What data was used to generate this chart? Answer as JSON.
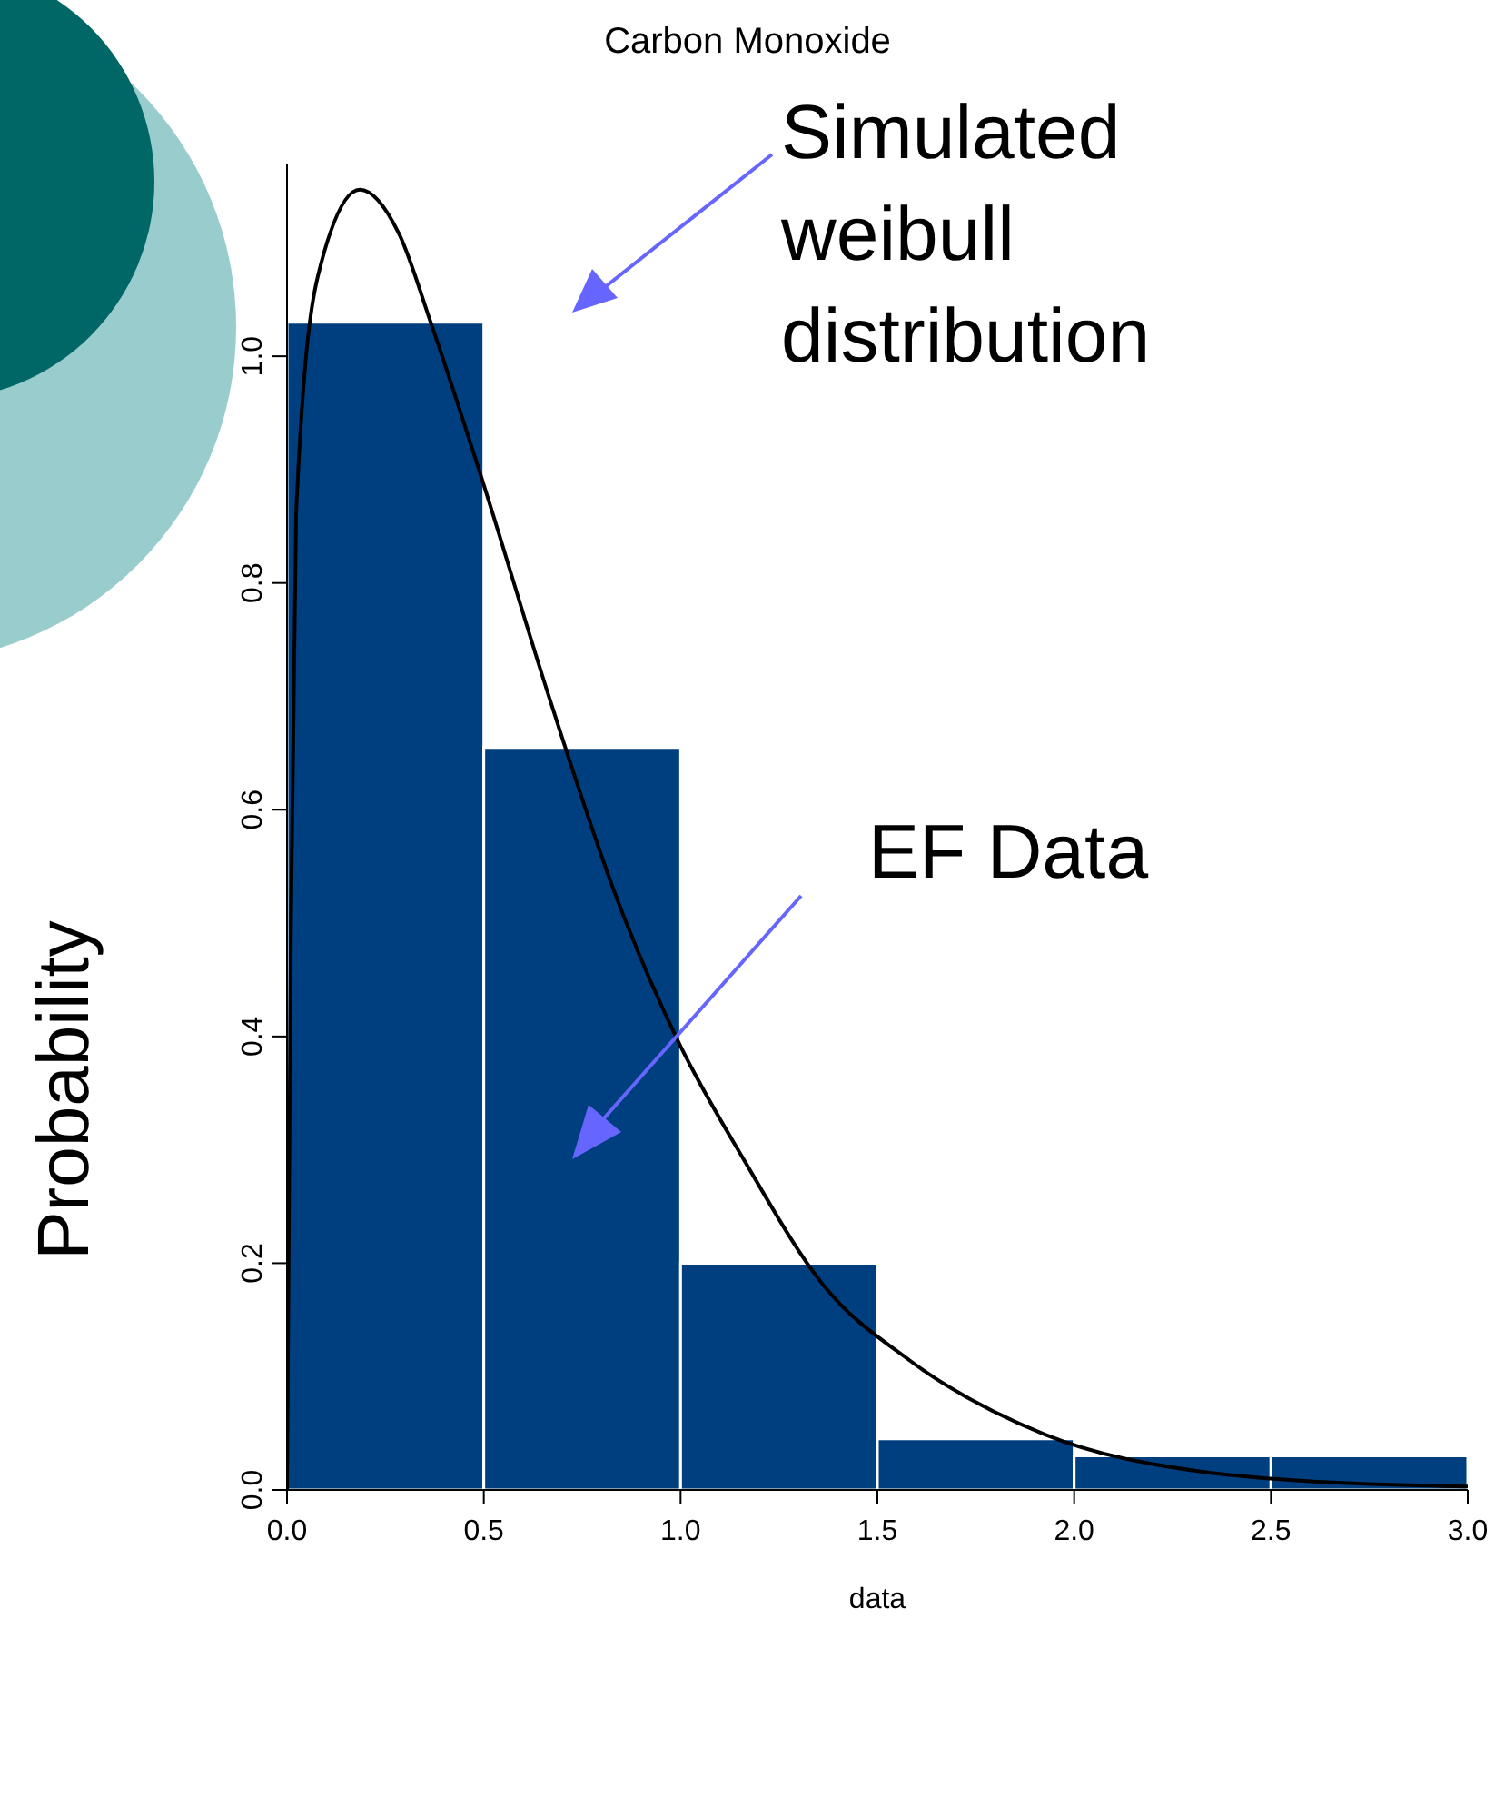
{
  "chart_data": {
    "type": "histogram",
    "title": "Carbon Monoxide",
    "xlabel": "data",
    "ylabel": "Probability",
    "color": "#003f7f",
    "bins": [
      0,
      0.5,
      1,
      1.5,
      2,
      2.5,
      3
    ],
    "values": [
      1.03,
      0.655,
      0.2,
      0.045,
      0.03,
      0.03
    ],
    "series": [
      {
        "type": "line",
        "color": "#000000",
        "x": [
          0,
          0.01,
          0.023,
          0.078,
          0.185,
          0.286,
          0.365,
          0.494,
          0.669,
          0.84,
          0.992,
          1.163,
          1.362,
          1.583,
          1.925,
          2.326,
          2.5,
          3.0
        ],
        "values": [
          0,
          0.5,
          0.86,
          1.07,
          1.147,
          1.107,
          1.03,
          0.893,
          0.696,
          0.52,
          0.397,
          0.29,
          0.181,
          0.114,
          0.049,
          0.016,
          0.01,
          0.003
        ]
      }
    ],
    "xlim": [
      0,
      3
    ],
    "xticks": [
      {
        "value": 0,
        "label": "0.0"
      },
      {
        "value": 0.5,
        "label": "0.5"
      },
      {
        "value": 1,
        "label": "1.0"
      },
      {
        "value": 1.5,
        "label": "1.5"
      },
      {
        "value": 2,
        "label": "2.0"
      },
      {
        "value": 2.5,
        "label": "2.5"
      },
      {
        "value": 3,
        "label": "3.0"
      }
    ],
    "ylim": [
      0,
      1.17
    ],
    "yticks": [
      {
        "value": 0,
        "label": "0.0"
      },
      {
        "value": 0.2,
        "label": "0.2"
      },
      {
        "value": 0.4,
        "label": "0.4"
      },
      {
        "value": 0.6,
        "label": "0.6"
      },
      {
        "value": 0.8,
        "label": "0.8"
      },
      {
        "value": 1,
        "label": "1.0"
      }
    ],
    "annotations": [
      "Simulated weibull distribution",
      "EF Data"
    ]
  }
}
